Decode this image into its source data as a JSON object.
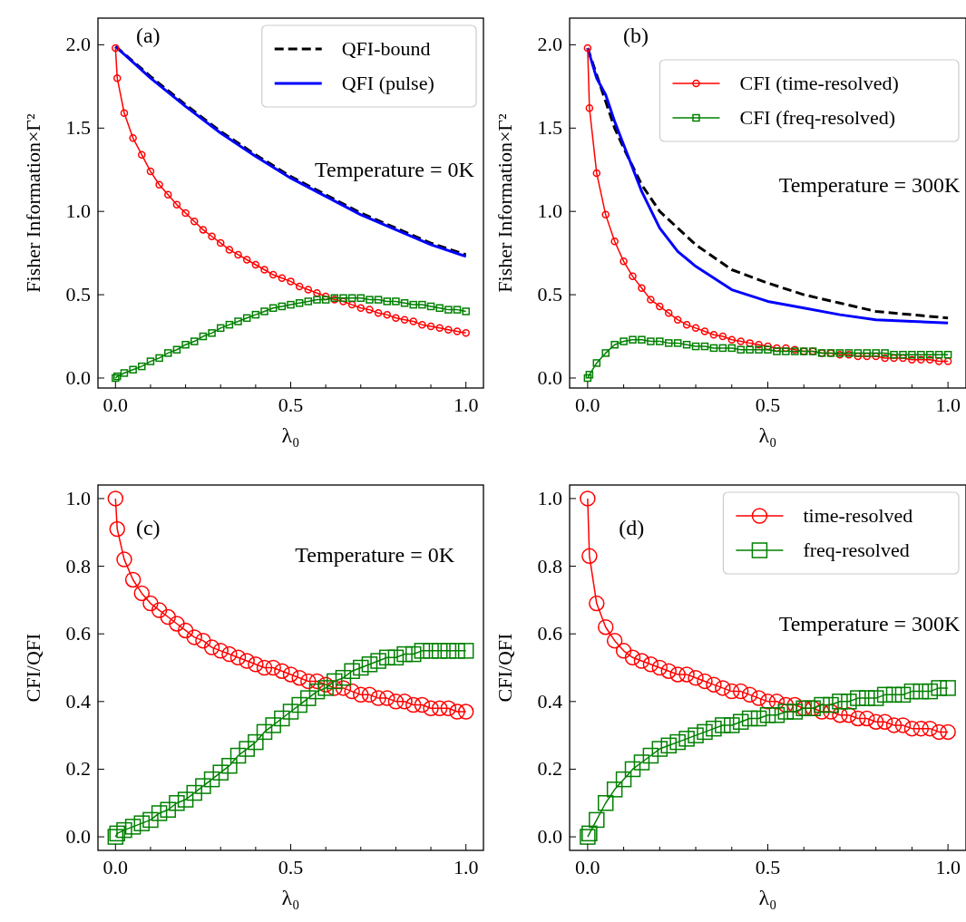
{
  "chart_data": [
    {
      "type": "line",
      "xlabel": "λ₀",
      "ylabel": "Fisher Information×Γ²",
      "legend": "top right",
      "grid": false,
      "annotations": [
        "(a)",
        "Temperature = 0K"
      ],
      "xlim": [
        -0.05,
        1.05
      ],
      "ylim": [
        -0.06,
        2.16
      ],
      "xticks": [
        {
          "value": 0,
          "label": "0.0"
        },
        {
          "value": 0.1,
          "label": null
        },
        {
          "value": 0.2,
          "label": null
        },
        {
          "value": 0.3,
          "label": null
        },
        {
          "value": 0.4,
          "label": null
        },
        {
          "value": 0.5,
          "label": "0.5"
        },
        {
          "value": 0.6,
          "label": null
        },
        {
          "value": 0.7,
          "label": null
        },
        {
          "value": 0.8,
          "label": null
        },
        {
          "value": 0.9,
          "label": null
        },
        {
          "value": 1,
          "label": "1.0"
        }
      ],
      "yticks": [
        {
          "value": 0,
          "label": "0.0"
        },
        {
          "value": 0.5,
          "label": "0.5"
        },
        {
          "value": 1,
          "label": "1.0"
        },
        {
          "value": 1.5,
          "label": "1.5"
        },
        {
          "value": 2,
          "label": "2.0"
        }
      ],
      "x": [
        0,
        0.005,
        0.025,
        0.05,
        0.075,
        0.1,
        0.125,
        0.15,
        0.175,
        0.2,
        0.225,
        0.25,
        0.275,
        0.3,
        0.325,
        0.35,
        0.375,
        0.4,
        0.425,
        0.45,
        0.475,
        0.5,
        0.525,
        0.55,
        0.575,
        0.6,
        0.625,
        0.65,
        0.675,
        0.7,
        0.725,
        0.75,
        0.775,
        0.8,
        0.825,
        0.85,
        0.875,
        0.9,
        0.925,
        0.95,
        0.975,
        1
      ],
      "series": [
        {
          "name": "QFI-bound",
          "color": "#000000",
          "line_style": "dashed",
          "marker": "none",
          "x": [
            0,
            0.1,
            0.2,
            0.3,
            0.4,
            0.5,
            0.6,
            0.7,
            0.8,
            0.9,
            1
          ],
          "values": [
            1.99,
            1.81,
            1.64,
            1.48,
            1.34,
            1.21,
            1.1,
            0.99,
            0.9,
            0.81,
            0.74
          ]
        },
        {
          "name": "QFI (pulse)",
          "color": "#0000ff",
          "line_style": "solid",
          "marker": "none",
          "x": [
            0,
            0.1,
            0.2,
            0.3,
            0.4,
            0.5,
            0.6,
            0.7,
            0.8,
            0.9,
            1
          ],
          "values": [
            1.99,
            1.8,
            1.63,
            1.47,
            1.33,
            1.2,
            1.09,
            0.98,
            0.89,
            0.8,
            0.73
          ]
        },
        {
          "color": "#ff0000",
          "line_style": "solid",
          "marker": "circle",
          "values": [
            1.98,
            1.8,
            1.59,
            1.44,
            1.34,
            1.24,
            1.16,
            1.1,
            1.04,
            0.99,
            0.94,
            0.89,
            0.85,
            0.81,
            0.77,
            0.74,
            0.71,
            0.68,
            0.65,
            0.62,
            0.6,
            0.58,
            0.55,
            0.53,
            0.51,
            0.49,
            0.47,
            0.46,
            0.44,
            0.42,
            0.41,
            0.39,
            0.38,
            0.36,
            0.35,
            0.34,
            0.32,
            0.31,
            0.3,
            0.29,
            0.28,
            0.27
          ]
        },
        {
          "color": "#008000",
          "line_style": "solid",
          "marker": "square",
          "values": [
            0,
            0.01,
            0.03,
            0.05,
            0.07,
            0.1,
            0.12,
            0.15,
            0.17,
            0.2,
            0.22,
            0.25,
            0.27,
            0.3,
            0.32,
            0.34,
            0.36,
            0.38,
            0.4,
            0.42,
            0.43,
            0.44,
            0.45,
            0.46,
            0.47,
            0.47,
            0.48,
            0.48,
            0.48,
            0.48,
            0.47,
            0.47,
            0.46,
            0.46,
            0.45,
            0.44,
            0.44,
            0.43,
            0.42,
            0.41,
            0.41,
            0.4
          ]
        }
      ]
    },
    {
      "type": "line",
      "xlabel": "λ₀",
      "ylabel": "Fisher Information×Γ²",
      "legend": "top right",
      "grid": false,
      "annotations": [
        "(b)",
        "Temperature = 300K"
      ],
      "xlim": [
        -0.05,
        1.05
      ],
      "ylim": [
        -0.06,
        2.16
      ],
      "xticks": [
        {
          "value": 0,
          "label": "0.0"
        },
        {
          "value": 0.1,
          "label": null
        },
        {
          "value": 0.2,
          "label": null
        },
        {
          "value": 0.3,
          "label": null
        },
        {
          "value": 0.4,
          "label": null
        },
        {
          "value": 0.5,
          "label": "0.5"
        },
        {
          "value": 0.6,
          "label": null
        },
        {
          "value": 0.7,
          "label": null
        },
        {
          "value": 0.8,
          "label": null
        },
        {
          "value": 0.9,
          "label": null
        },
        {
          "value": 1,
          "label": "1.0"
        }
      ],
      "yticks": [
        {
          "value": 0,
          "label": "0.0"
        },
        {
          "value": 0.5,
          "label": "0.5"
        },
        {
          "value": 1,
          "label": "1.0"
        },
        {
          "value": 1.5,
          "label": "1.5"
        },
        {
          "value": 2,
          "label": "2.0"
        }
      ],
      "x": [
        0,
        0.005,
        0.025,
        0.05,
        0.075,
        0.1,
        0.125,
        0.15,
        0.175,
        0.2,
        0.225,
        0.25,
        0.275,
        0.3,
        0.325,
        0.35,
        0.375,
        0.4,
        0.425,
        0.45,
        0.475,
        0.5,
        0.525,
        0.55,
        0.575,
        0.6,
        0.625,
        0.65,
        0.675,
        0.7,
        0.725,
        0.75,
        0.775,
        0.8,
        0.825,
        0.85,
        0.875,
        0.9,
        0.925,
        0.95,
        0.975,
        1
      ],
      "series": [
        {
          "color": "#000000",
          "line_style": "dashed",
          "marker": "none",
          "x": [
            0,
            0.025,
            0.05,
            0.075,
            0.1,
            0.15,
            0.2,
            0.3,
            0.4,
            0.5,
            0.6,
            0.7,
            0.8,
            0.9,
            1
          ],
          "values": [
            1.98,
            1.82,
            1.66,
            1.5,
            1.38,
            1.16,
            1.0,
            0.8,
            0.65,
            0.57,
            0.5,
            0.45,
            0.4,
            0.38,
            0.36
          ]
        },
        {
          "color": "#0000ff",
          "line_style": "solid",
          "marker": "none",
          "x": [
            0,
            0.025,
            0.05,
            0.075,
            0.1,
            0.15,
            0.2,
            0.25,
            0.3,
            0.4,
            0.5,
            0.6,
            0.7,
            0.8,
            0.9,
            1
          ],
          "values": [
            1.98,
            1.8,
            1.7,
            1.54,
            1.4,
            1.12,
            0.9,
            0.76,
            0.67,
            0.53,
            0.46,
            0.42,
            0.38,
            0.35,
            0.34,
            0.33
          ]
        },
        {
          "name": "CFI (time-resolved)",
          "color": "#ff0000",
          "line_style": "solid",
          "marker": "circle",
          "values": [
            1.98,
            1.62,
            1.23,
            0.98,
            0.82,
            0.7,
            0.61,
            0.54,
            0.47,
            0.43,
            0.39,
            0.35,
            0.32,
            0.3,
            0.28,
            0.26,
            0.25,
            0.23,
            0.22,
            0.21,
            0.2,
            0.19,
            0.18,
            0.18,
            0.17,
            0.16,
            0.16,
            0.15,
            0.15,
            0.14,
            0.14,
            0.13,
            0.13,
            0.13,
            0.12,
            0.12,
            0.12,
            0.11,
            0.11,
            0.11,
            0.1,
            0.1
          ]
        },
        {
          "name": "CFI (freq-resolved)",
          "color": "#008000",
          "line_style": "solid",
          "marker": "square",
          "values": [
            0,
            0.02,
            0.09,
            0.15,
            0.2,
            0.22,
            0.23,
            0.23,
            0.22,
            0.22,
            0.21,
            0.21,
            0.2,
            0.19,
            0.19,
            0.18,
            0.18,
            0.18,
            0.17,
            0.17,
            0.17,
            0.17,
            0.16,
            0.16,
            0.16,
            0.16,
            0.16,
            0.15,
            0.15,
            0.15,
            0.15,
            0.15,
            0.15,
            0.15,
            0.15,
            0.14,
            0.14,
            0.14,
            0.14,
            0.14,
            0.14,
            0.14
          ]
        }
      ]
    },
    {
      "type": "line",
      "xlabel": "λ₀",
      "ylabel": "CFI/QFI",
      "legend": false,
      "grid": false,
      "annotations": [
        "(c)",
        "Temperature = 0K"
      ],
      "xlim": [
        -0.05,
        1.05
      ],
      "ylim": [
        -0.04,
        1.04
      ],
      "xticks": [
        {
          "value": 0,
          "label": "0.0"
        },
        {
          "value": 0.1,
          "label": null
        },
        {
          "value": 0.2,
          "label": null
        },
        {
          "value": 0.3,
          "label": null
        },
        {
          "value": 0.4,
          "label": null
        },
        {
          "value": 0.5,
          "label": "0.5"
        },
        {
          "value": 0.6,
          "label": null
        },
        {
          "value": 0.7,
          "label": null
        },
        {
          "value": 0.8,
          "label": null
        },
        {
          "value": 0.9,
          "label": null
        },
        {
          "value": 1,
          "label": "1.0"
        }
      ],
      "yticks": [
        {
          "value": 0,
          "label": "0.0"
        },
        {
          "value": 0.2,
          "label": "0.2"
        },
        {
          "value": 0.4,
          "label": "0.4"
        },
        {
          "value": 0.6,
          "label": "0.6"
        },
        {
          "value": 0.8,
          "label": "0.8"
        },
        {
          "value": 1,
          "label": "1.0"
        }
      ],
      "x": [
        0,
        0.005,
        0.025,
        0.05,
        0.075,
        0.1,
        0.125,
        0.15,
        0.175,
        0.2,
        0.225,
        0.25,
        0.275,
        0.3,
        0.325,
        0.35,
        0.375,
        0.4,
        0.425,
        0.45,
        0.475,
        0.5,
        0.525,
        0.55,
        0.575,
        0.6,
        0.625,
        0.65,
        0.675,
        0.7,
        0.725,
        0.75,
        0.775,
        0.8,
        0.825,
        0.85,
        0.875,
        0.9,
        0.925,
        0.95,
        0.975,
        1
      ],
      "series": [
        {
          "color": "#ff0000",
          "line_style": "solid",
          "marker": "circle",
          "values": [
            1.0,
            0.91,
            0.82,
            0.76,
            0.72,
            0.69,
            0.67,
            0.65,
            0.63,
            0.61,
            0.59,
            0.58,
            0.56,
            0.55,
            0.54,
            0.53,
            0.52,
            0.51,
            0.5,
            0.5,
            0.49,
            0.48,
            0.47,
            0.46,
            0.46,
            0.45,
            0.44,
            0.44,
            0.43,
            0.42,
            0.42,
            0.41,
            0.41,
            0.4,
            0.4,
            0.39,
            0.39,
            0.38,
            0.38,
            0.38,
            0.37,
            0.37
          ]
        },
        {
          "color": "#008000",
          "line_style": "solid",
          "marker": "square",
          "values": [
            0,
            0.01,
            0.02,
            0.03,
            0.04,
            0.05,
            0.07,
            0.08,
            0.1,
            0.11,
            0.13,
            0.15,
            0.17,
            0.19,
            0.21,
            0.24,
            0.26,
            0.28,
            0.31,
            0.33,
            0.35,
            0.37,
            0.39,
            0.41,
            0.43,
            0.44,
            0.46,
            0.47,
            0.49,
            0.5,
            0.51,
            0.52,
            0.53,
            0.53,
            0.54,
            0.54,
            0.55,
            0.55,
            0.55,
            0.55,
            0.55,
            0.55
          ]
        }
      ]
    },
    {
      "type": "line",
      "xlabel": "λ₀",
      "ylabel": "CFI/QFI",
      "legend": "top right",
      "grid": false,
      "annotations": [
        "(d)",
        "Temperature = 300K"
      ],
      "xlim": [
        -0.05,
        1.05
      ],
      "ylim": [
        -0.04,
        1.04
      ],
      "xticks": [
        {
          "value": 0,
          "label": "0.0"
        },
        {
          "value": 0.1,
          "label": null
        },
        {
          "value": 0.2,
          "label": null
        },
        {
          "value": 0.3,
          "label": null
        },
        {
          "value": 0.4,
          "label": null
        },
        {
          "value": 0.5,
          "label": "0.5"
        },
        {
          "value": 0.6,
          "label": null
        },
        {
          "value": 0.7,
          "label": null
        },
        {
          "value": 0.8,
          "label": null
        },
        {
          "value": 0.9,
          "label": null
        },
        {
          "value": 1,
          "label": "1.0"
        }
      ],
      "yticks": [
        {
          "value": 0,
          "label": "0.0"
        },
        {
          "value": 0.2,
          "label": "0.2"
        },
        {
          "value": 0.4,
          "label": "0.4"
        },
        {
          "value": 0.6,
          "label": "0.6"
        },
        {
          "value": 0.8,
          "label": "0.8"
        },
        {
          "value": 1,
          "label": "1.0"
        }
      ],
      "x": [
        0,
        0.005,
        0.025,
        0.05,
        0.075,
        0.1,
        0.125,
        0.15,
        0.175,
        0.2,
        0.225,
        0.25,
        0.275,
        0.3,
        0.325,
        0.35,
        0.375,
        0.4,
        0.425,
        0.45,
        0.475,
        0.5,
        0.525,
        0.55,
        0.575,
        0.6,
        0.625,
        0.65,
        0.675,
        0.7,
        0.725,
        0.75,
        0.775,
        0.8,
        0.825,
        0.85,
        0.875,
        0.9,
        0.925,
        0.95,
        0.975,
        1
      ],
      "series": [
        {
          "name": "time-resolved",
          "color": "#ff0000",
          "line_style": "solid",
          "marker": "circle",
          "values": [
            1.0,
            0.83,
            0.69,
            0.62,
            0.58,
            0.55,
            0.53,
            0.52,
            0.51,
            0.5,
            0.49,
            0.48,
            0.48,
            0.47,
            0.46,
            0.45,
            0.44,
            0.43,
            0.43,
            0.42,
            0.41,
            0.4,
            0.4,
            0.39,
            0.39,
            0.38,
            0.38,
            0.37,
            0.37,
            0.36,
            0.36,
            0.35,
            0.35,
            0.34,
            0.34,
            0.33,
            0.33,
            0.32,
            0.32,
            0.32,
            0.31,
            0.31
          ]
        },
        {
          "name": "freq-resolved",
          "color": "#008000",
          "line_style": "solid",
          "marker": "square",
          "values": [
            0,
            0.01,
            0.05,
            0.1,
            0.14,
            0.17,
            0.2,
            0.22,
            0.24,
            0.26,
            0.27,
            0.28,
            0.29,
            0.3,
            0.31,
            0.32,
            0.33,
            0.33,
            0.34,
            0.35,
            0.35,
            0.36,
            0.36,
            0.37,
            0.37,
            0.38,
            0.38,
            0.39,
            0.39,
            0.4,
            0.4,
            0.41,
            0.41,
            0.41,
            0.42,
            0.42,
            0.42,
            0.43,
            0.43,
            0.43,
            0.44,
            0.44
          ]
        }
      ]
    }
  ]
}
